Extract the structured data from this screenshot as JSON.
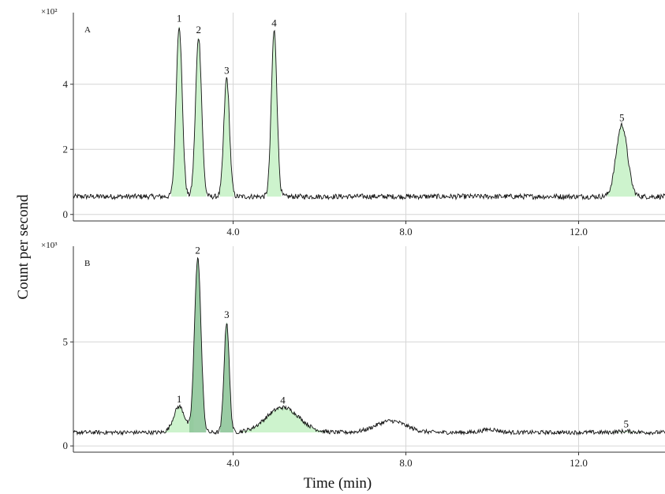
{
  "chart_data": {
    "type": "line",
    "xlabel": "Time (min)",
    "ylabel": "Count per second",
    "xlim": [
      0.3,
      14.0
    ],
    "x_ticks": [
      {
        "value": 4.0,
        "label": "4.0"
      },
      {
        "value": 8.0,
        "label": "8.0"
      },
      {
        "value": 12.0,
        "label": "12.0"
      }
    ],
    "grid": true,
    "panels": [
      {
        "tag": "A",
        "y_exponent_label": "×10²",
        "ylim": [
          -0.2,
          6.2
        ],
        "y_ticks": [
          {
            "value": 0,
            "label": "0"
          },
          {
            "value": 2,
            "label": "2"
          },
          {
            "value": 4,
            "label": "4"
          }
        ],
        "baseline": 0.55,
        "noise": 0.08,
        "peaks": [
          {
            "label": "1",
            "rt": 2.75,
            "height": 5.8,
            "width": 0.07
          },
          {
            "label": "2",
            "rt": 3.2,
            "height": 5.45,
            "width": 0.07
          },
          {
            "label": "3",
            "rt": 3.85,
            "height": 4.2,
            "width": 0.065
          },
          {
            "label": "4",
            "rt": 4.95,
            "height": 5.65,
            "width": 0.065
          },
          {
            "label": "5",
            "rt": 13.0,
            "height": 2.75,
            "width": 0.13
          }
        ],
        "bumps": []
      },
      {
        "tag": "B",
        "y_exponent_label": "×10³",
        "ylim": [
          -0.3,
          9.6
        ],
        "y_ticks": [
          {
            "value": 0,
            "label": "0"
          },
          {
            "value": 5,
            "label": "5"
          }
        ],
        "baseline": 0.65,
        "noise": 0.1,
        "peaks": [
          {
            "label": "1",
            "rt": 2.75,
            "height": 1.9,
            "width": 0.13
          },
          {
            "label": "2",
            "rt": 3.18,
            "height": 9.05,
            "width": 0.075
          },
          {
            "label": "3",
            "rt": 3.85,
            "height": 5.95,
            "width": 0.06
          },
          {
            "label": "4",
            "rt": 5.15,
            "height": 1.85,
            "width": 0.38
          },
          {
            "label": "5",
            "rt": 13.1,
            "height": 0.7,
            "width": 0.2
          }
        ],
        "bumps": [
          {
            "rt": 7.65,
            "height": 1.2,
            "width": 0.35
          },
          {
            "rt": 9.95,
            "height": 0.8,
            "width": 0.18
          }
        ]
      }
    ]
  },
  "colors": {
    "trace": "#111111",
    "fill_light": "#c8f2c8",
    "fill_dark": "#8fc79a",
    "grid": "#d6d6d6",
    "axis": "#333333"
  }
}
